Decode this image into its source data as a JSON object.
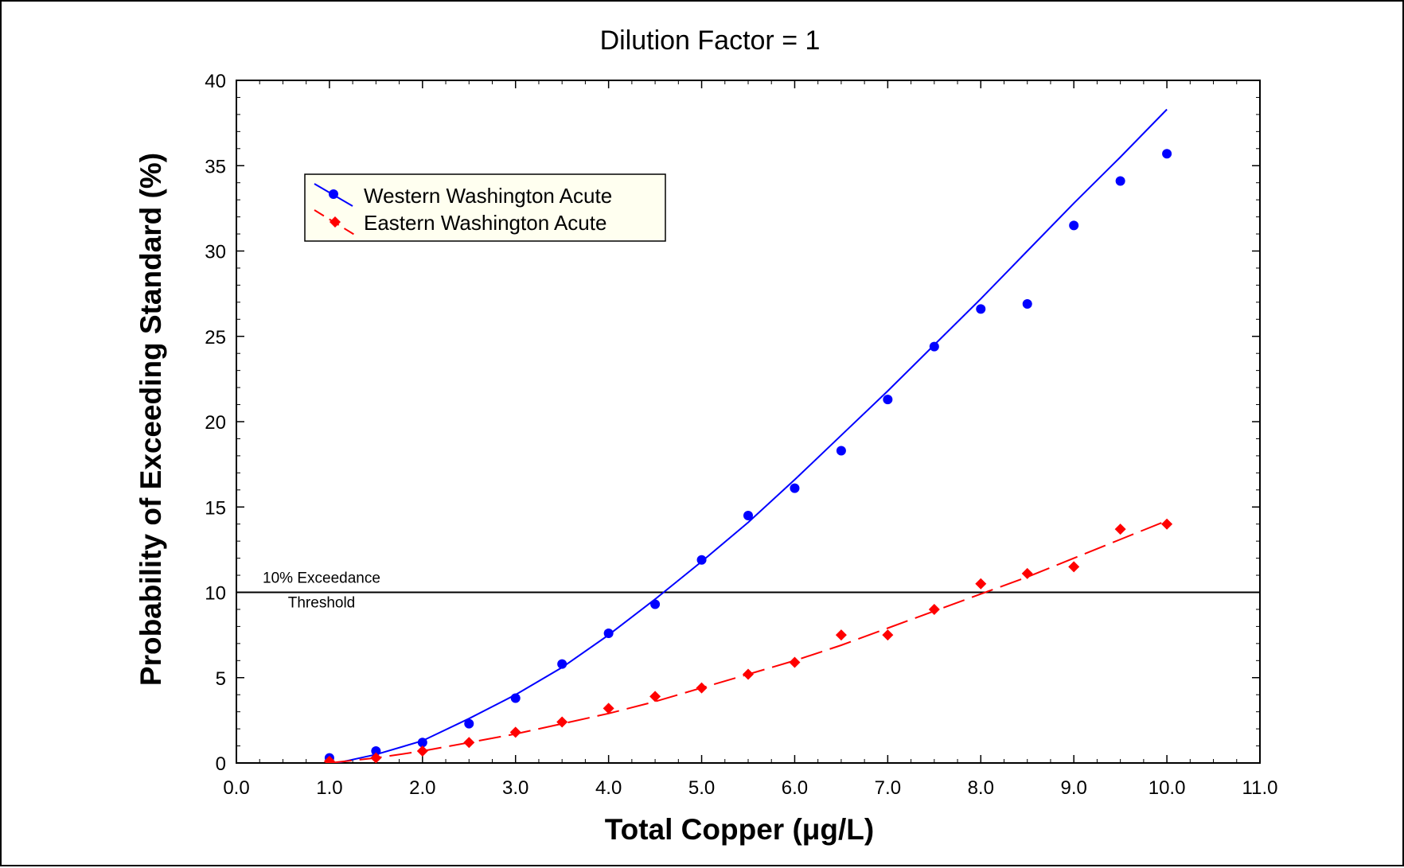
{
  "chart_data": {
    "type": "scatter",
    "title": "Dilution Factor = 1",
    "xlabel": "Total Copper (μg/L)",
    "ylabel": "Probability of Exceeding Standard (%)",
    "xlim": [
      0,
      11
    ],
    "ylim": [
      0,
      40
    ],
    "x_ticks": [
      "0.0",
      "1.0",
      "2.0",
      "3.0",
      "4.0",
      "5.0",
      "6.0",
      "7.0",
      "8.0",
      "9.0",
      "10.0",
      "11.0"
    ],
    "y_ticks": [
      "0",
      "5",
      "10",
      "15",
      "20",
      "25",
      "30",
      "35",
      "40"
    ],
    "grid": false,
    "legend_position": "top-left",
    "series": [
      {
        "name": "Western Washington Acute",
        "color": "#0000ff",
        "marker": "circle",
        "line_style": "solid",
        "x": [
          1.0,
          1.5,
          2.0,
          2.5,
          3.0,
          3.5,
          4.0,
          4.5,
          5.0,
          5.5,
          6.0,
          6.5,
          7.0,
          7.5,
          8.0,
          8.5,
          9.0,
          9.5,
          10.0
        ],
        "y": [
          0.3,
          0.7,
          1.2,
          2.3,
          3.8,
          5.8,
          7.6,
          9.3,
          11.9,
          14.5,
          16.1,
          18.3,
          21.3,
          24.4,
          26.6,
          26.9,
          31.5,
          34.1,
          35.7
        ],
        "fit_x": [
          1.0,
          1.5,
          2.0,
          2.5,
          3.0,
          3.5,
          4.0,
          4.5,
          5.0,
          5.5,
          6.0,
          6.5,
          7.0,
          7.5,
          8.0,
          8.5,
          9.0,
          9.5,
          10.0
        ],
        "fit_y": [
          -0.1,
          0.5,
          1.3,
          2.6,
          4.0,
          5.6,
          7.5,
          9.6,
          11.8,
          14.1,
          16.6,
          19.2,
          21.8,
          24.5,
          27.2,
          30.0,
          32.8,
          35.5,
          38.3
        ]
      },
      {
        "name": "Eastern Washington Acute",
        "color": "#ff0000",
        "marker": "diamond",
        "line_style": "dashed",
        "x": [
          1.0,
          1.5,
          2.0,
          2.5,
          3.0,
          3.5,
          4.0,
          4.5,
          5.0,
          5.5,
          6.0,
          6.5,
          7.0,
          7.5,
          8.0,
          8.5,
          9.0,
          9.5,
          10.0
        ],
        "y": [
          0.1,
          0.3,
          0.7,
          1.2,
          1.8,
          2.4,
          3.2,
          3.9,
          4.4,
          5.2,
          5.9,
          7.5,
          7.5,
          9.0,
          10.5,
          11.1,
          11.5,
          13.7,
          14.0
        ],
        "fit_x": [
          1.0,
          1.5,
          2.0,
          2.5,
          3.0,
          3.5,
          4.0,
          4.5,
          5.0,
          5.5,
          6.0,
          6.5,
          7.0,
          7.5,
          8.0,
          8.5,
          9.0,
          9.5,
          10.0
        ],
        "fit_y": [
          0.0,
          0.3,
          0.7,
          1.2,
          1.7,
          2.3,
          2.9,
          3.6,
          4.4,
          5.2,
          6.0,
          6.9,
          7.9,
          8.9,
          9.9,
          10.9,
          12.0,
          13.1,
          14.2
        ]
      }
    ],
    "reference_lines": [
      {
        "y": 10,
        "color": "#000000",
        "label_line1": "10% Exceedance",
        "label_line2": "Threshold"
      }
    ]
  },
  "legend": {
    "background": "#fffff0",
    "entries": [
      "Western Washington Acute",
      "Eastern Washington Acute"
    ]
  }
}
